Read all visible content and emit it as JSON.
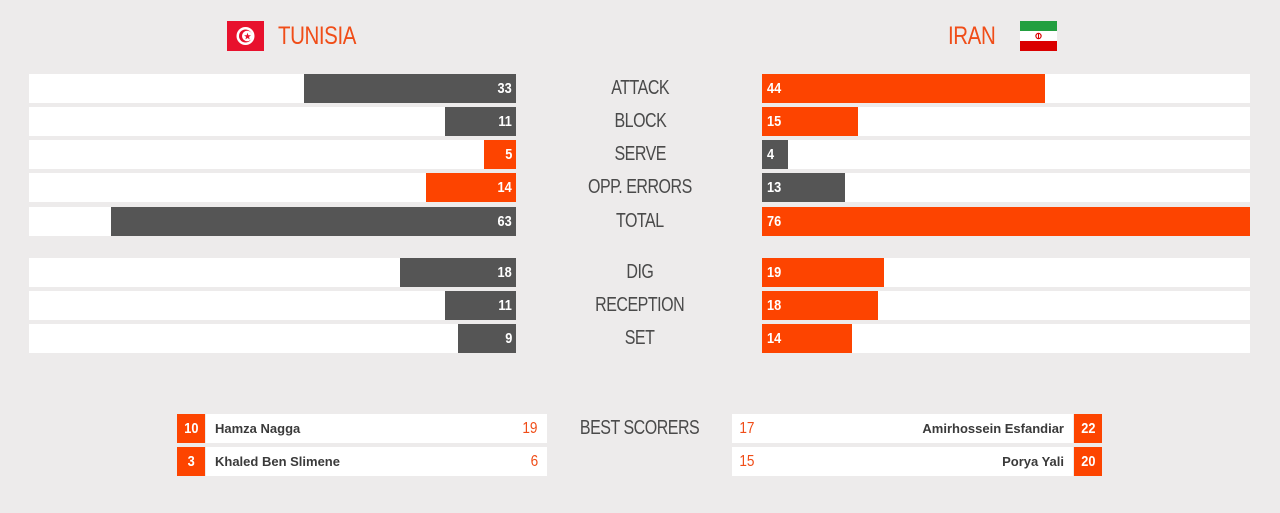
{
  "teams": {
    "left": {
      "name": "TUNISIA",
      "flag_icon": "tunisia-flag-icon"
    },
    "right": {
      "name": "IRAN",
      "flag_icon": "iran-flag-icon"
    }
  },
  "colors": {
    "accent": "#fd4400",
    "grey_bar": "#555555",
    "track": "#ffffff",
    "background": "#edebeb"
  },
  "stats": [
    {
      "label": "ATTACK",
      "left": 33,
      "left_color": "grey",
      "right": 44,
      "right_color": "orange"
    },
    {
      "label": "BLOCK",
      "left": 11,
      "left_color": "grey",
      "right": 15,
      "right_color": "orange"
    },
    {
      "label": "SERVE",
      "left": 5,
      "left_color": "orange",
      "right": 4,
      "right_color": "grey"
    },
    {
      "label": "OPP. ERRORS",
      "left": 14,
      "left_color": "orange",
      "right": 13,
      "right_color": "grey"
    },
    {
      "label": "TOTAL",
      "left": 63,
      "left_color": "grey",
      "right": 76,
      "right_color": "orange"
    },
    {
      "label": "DIG",
      "left": 18,
      "left_color": "grey",
      "right": 19,
      "right_color": "orange"
    },
    {
      "label": "RECEPTION",
      "left": 11,
      "left_color": "grey",
      "right": 18,
      "right_color": "orange"
    },
    {
      "label": "SET",
      "left": 9,
      "left_color": "grey",
      "right": 14,
      "right_color": "orange"
    }
  ],
  "best_scorers": {
    "label": "BEST SCORERS",
    "left": [
      {
        "number": "10",
        "name": "Hamza Nagga",
        "points": "19"
      },
      {
        "number": "3",
        "name": "Khaled Ben Slimene",
        "points": "6"
      }
    ],
    "right": [
      {
        "number": "22",
        "name": "Amirhossein Esfandiar",
        "points": "17"
      },
      {
        "number": "20",
        "name": "Porya Yali",
        "points": "15"
      }
    ]
  }
}
